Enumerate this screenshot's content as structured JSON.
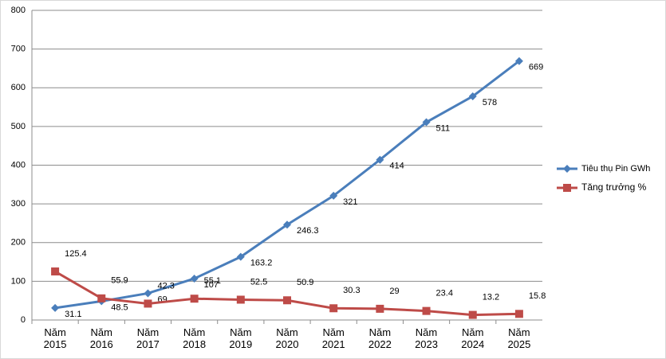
{
  "chart_data": {
    "type": "line",
    "categories": [
      "Năm 2015",
      "Năm 2016",
      "Năm 2017",
      "Năm 2018",
      "Năm 2019",
      "Năm 2020",
      "Năm 2021",
      "Năm 2022",
      "Năm 2023",
      "Năm 2024",
      "Năm 2025"
    ],
    "series": [
      {
        "name": "Tiêu thụ Pin GWh",
        "color": "#4a7ebb",
        "marker": "diamond",
        "values": [
          31.1,
          48.5,
          69,
          107,
          163.2,
          246.3,
          321,
          414,
          511,
          578,
          669
        ]
      },
      {
        "name": "Tăng trưởng %",
        "color": "#be4b48",
        "marker": "square",
        "values": [
          125.4,
          55.9,
          42.3,
          55.1,
          52.5,
          50.9,
          30.3,
          29,
          23.4,
          13.2,
          15.8
        ]
      }
    ],
    "ylim": [
      0,
      800
    ],
    "yticks": [
      0,
      100,
      200,
      300,
      400,
      500,
      600,
      700,
      800
    ],
    "grid": true,
    "legend": "right"
  }
}
